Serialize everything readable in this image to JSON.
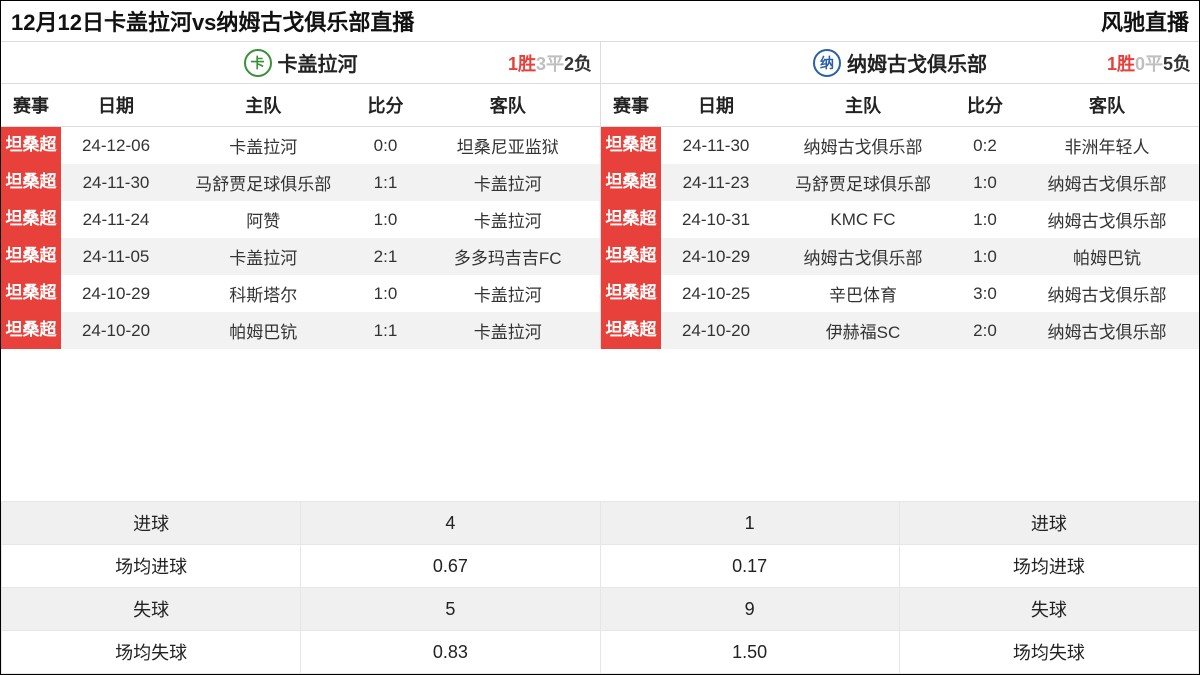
{
  "colors": {
    "badge": "#e8413b",
    "win": "#e8413b",
    "draw": "#bfbfbf",
    "lose": "#333333",
    "zebra": "#f2f2f2",
    "border": "#dddddd"
  },
  "header": {
    "title": "12月12日卡盖拉河vs纳姆古戈俱乐部直播",
    "site": "风驰直播"
  },
  "table_columns": {
    "league": "赛事",
    "date": "日期",
    "home": "主队",
    "score": "比分",
    "away": "客队"
  },
  "left": {
    "team_name": "卡盖拉河",
    "logo_color": "#3a8f3a",
    "logo_letter": "卡",
    "record": {
      "win_n": "1",
      "win_s": "胜",
      "draw_n": "3",
      "draw_s": "平",
      "lose_n": "2",
      "lose_s": "负"
    },
    "matches": [
      {
        "league": "坦桑超",
        "date": "24-12-06",
        "home": "卡盖拉河",
        "score": "0:0",
        "away": "坦桑尼亚监狱"
      },
      {
        "league": "坦桑超",
        "date": "24-11-30",
        "home": "马舒贾足球俱乐部",
        "score": "1:1",
        "away": "卡盖拉河"
      },
      {
        "league": "坦桑超",
        "date": "24-11-24",
        "home": "阿赞",
        "score": "1:0",
        "away": "卡盖拉河"
      },
      {
        "league": "坦桑超",
        "date": "24-11-05",
        "home": "卡盖拉河",
        "score": "2:1",
        "away": "多多玛吉吉FC"
      },
      {
        "league": "坦桑超",
        "date": "24-10-29",
        "home": "科斯塔尔",
        "score": "1:0",
        "away": "卡盖拉河"
      },
      {
        "league": "坦桑超",
        "date": "24-10-20",
        "home": "帕姆巴钪",
        "score": "1:1",
        "away": "卡盖拉河"
      }
    ]
  },
  "right": {
    "team_name": "纳姆古戈俱乐部",
    "logo_color": "#2b5fa8",
    "logo_letter": "纳",
    "record": {
      "win_n": "1",
      "win_s": "胜",
      "draw_n": "0",
      "draw_s": "平",
      "lose_n": "5",
      "lose_s": "负"
    },
    "matches": [
      {
        "league": "坦桑超",
        "date": "24-11-30",
        "home": "纳姆古戈俱乐部",
        "score": "0:2",
        "away": "非洲年轻人"
      },
      {
        "league": "坦桑超",
        "date": "24-11-23",
        "home": "马舒贾足球俱乐部",
        "score": "1:0",
        "away": "纳姆古戈俱乐部"
      },
      {
        "league": "坦桑超",
        "date": "24-10-31",
        "home": "KMC FC",
        "score": "1:0",
        "away": "纳姆古戈俱乐部"
      },
      {
        "league": "坦桑超",
        "date": "24-10-29",
        "home": "纳姆古戈俱乐部",
        "score": "1:0",
        "away": "帕姆巴钪"
      },
      {
        "league": "坦桑超",
        "date": "24-10-25",
        "home": "辛巴体育",
        "score": "3:0",
        "away": "纳姆古戈俱乐部"
      },
      {
        "league": "坦桑超",
        "date": "24-10-20",
        "home": "伊赫福SC",
        "score": "2:0",
        "away": "纳姆古戈俱乐部"
      }
    ]
  },
  "stats": {
    "rows": [
      {
        "label": "进球",
        "left": "4",
        "right": "1"
      },
      {
        "label": "场均进球",
        "left": "0.67",
        "right": "0.17"
      },
      {
        "label": "失球",
        "left": "5",
        "right": "9"
      },
      {
        "label": "场均失球",
        "left": "0.83",
        "right": "1.50"
      }
    ]
  }
}
